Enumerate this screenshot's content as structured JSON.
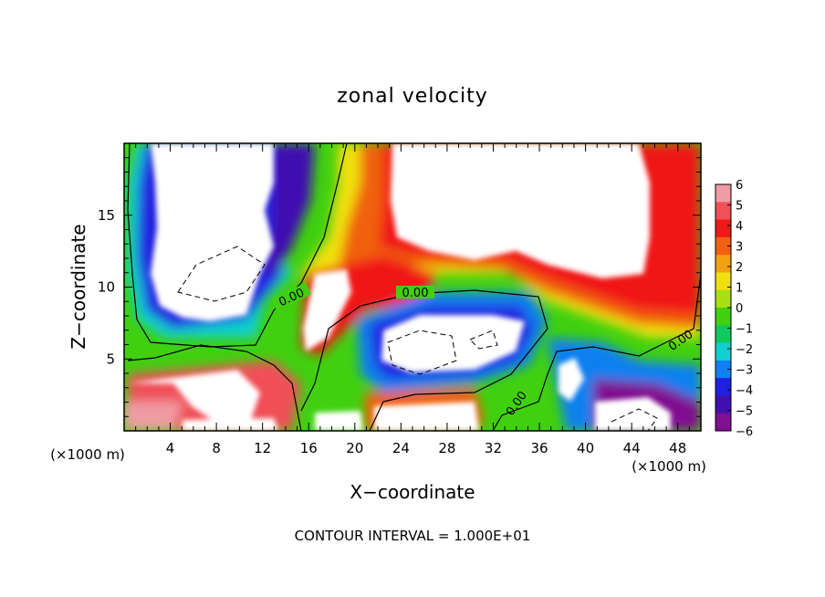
{
  "chart_data": {
    "type": "heatmap",
    "title": "zonal velocity",
    "xlabel": "X−coordinate",
    "ylabel": "Z−coordinate",
    "x_unit_left": "(×1000 m)",
    "x_unit_right": "(×1000 m)",
    "xlim": [
      0,
      50
    ],
    "ylim": [
      0,
      20
    ],
    "x_ticks": [
      4,
      8,
      12,
      16,
      20,
      24,
      28,
      32,
      36,
      40,
      44,
      48
    ],
    "y_ticks": [
      5,
      10,
      15
    ],
    "colorbar": {
      "ticks": [
        "6",
        "5",
        "4",
        "3",
        "2",
        "1",
        "0",
        "−1",
        "−2",
        "−3",
        "−4",
        "−5",
        "−6"
      ],
      "colors": [
        "#f09ca4",
        "#f05058",
        "#f01818",
        "#f06010",
        "#f0a010",
        "#f0e010",
        "#a8e010",
        "#40d010",
        "#10c860",
        "#10d0d0",
        "#1080f0",
        "#2020e0",
        "#4010b0",
        "#801090"
      ]
    },
    "contour_labels": [
      "0.00",
      "0.00",
      "0.00",
      "0.00"
    ],
    "footer": "CONTOUR INTERVAL = 1.000E+01"
  }
}
